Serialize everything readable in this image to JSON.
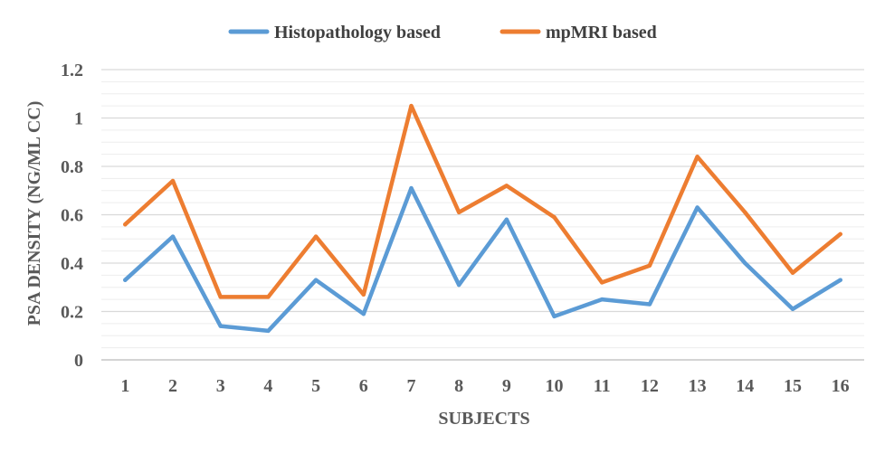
{
  "chart_data": {
    "type": "line",
    "title": "",
    "xlabel": "SUBJECTS",
    "ylabel": "PSA DENSITY (NG/ML CC)",
    "categories": [
      "1",
      "2",
      "3",
      "4",
      "5",
      "6",
      "7",
      "8",
      "9",
      "10",
      "11",
      "12",
      "13",
      "14",
      "15",
      "16"
    ],
    "ylim": [
      0,
      1.2
    ],
    "yticks": [
      "0",
      "0.2",
      "0.4",
      "0.6",
      "0.8",
      "1",
      "1.2"
    ],
    "grid": true,
    "legend_position": "top",
    "series": [
      {
        "name": "Histopathology based",
        "color": "#5B9BD5",
        "values": [
          0.33,
          0.51,
          0.14,
          0.12,
          0.33,
          0.19,
          0.71,
          0.31,
          0.58,
          0.18,
          0.25,
          0.23,
          0.63,
          0.4,
          0.21,
          0.33
        ]
      },
      {
        "name": "mpMRI based",
        "color": "#ED7D31",
        "values": [
          0.56,
          0.74,
          0.26,
          0.26,
          0.51,
          0.27,
          1.05,
          0.61,
          0.72,
          0.59,
          0.32,
          0.39,
          0.84,
          0.61,
          0.36,
          0.52
        ]
      }
    ]
  }
}
